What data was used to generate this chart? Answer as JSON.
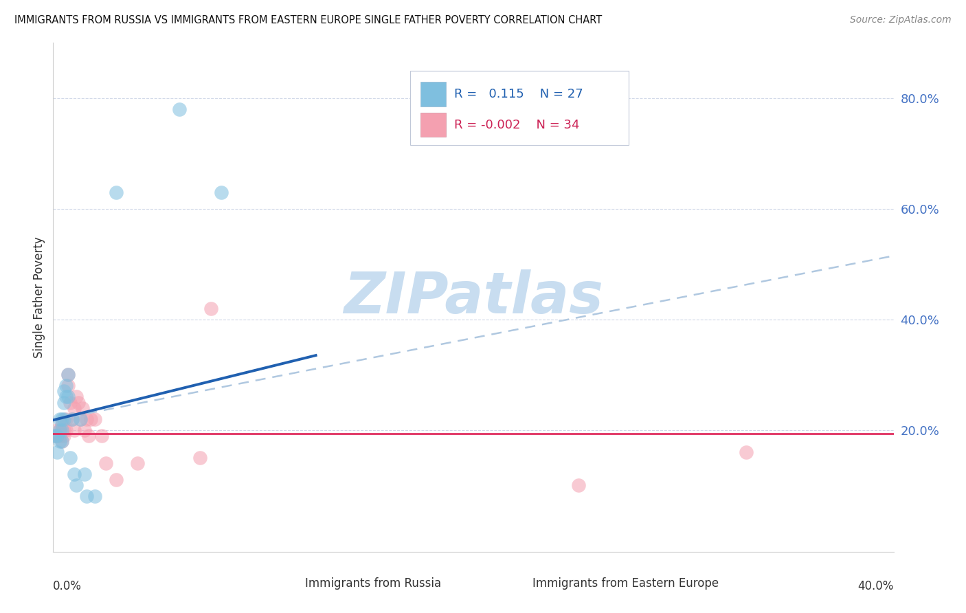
{
  "title": "IMMIGRANTS FROM RUSSIA VS IMMIGRANTS FROM EASTERN EUROPE SINGLE FATHER POVERTY CORRELATION CHART",
  "source": "Source: ZipAtlas.com",
  "ylabel": "Single Father Poverty",
  "right_yticks": [
    "80.0%",
    "60.0%",
    "40.0%",
    "20.0%"
  ],
  "right_ytick_vals": [
    0.8,
    0.6,
    0.4,
    0.2
  ],
  "xlim": [
    0.0,
    0.4
  ],
  "ylim": [
    -0.02,
    0.9
  ],
  "russia_color": "#7fbfdf",
  "eastern_color": "#f4a0b0",
  "russia_line_color": "#2060b0",
  "eastern_line_color": "#e03060",
  "trend_line_dash_color": "#b0c8e0",
  "watermark_color": "#c8ddf0",
  "russia_points_x": [
    0.001,
    0.002,
    0.002,
    0.003,
    0.003,
    0.003,
    0.004,
    0.004,
    0.004,
    0.005,
    0.005,
    0.005,
    0.006,
    0.006,
    0.007,
    0.007,
    0.008,
    0.009,
    0.01,
    0.011,
    0.013,
    0.015,
    0.016,
    0.02,
    0.03,
    0.06,
    0.08
  ],
  "russia_points_y": [
    0.19,
    0.16,
    0.19,
    0.18,
    0.2,
    0.22,
    0.18,
    0.2,
    0.22,
    0.22,
    0.25,
    0.27,
    0.26,
    0.28,
    0.26,
    0.3,
    0.15,
    0.22,
    0.12,
    0.1,
    0.22,
    0.12,
    0.08,
    0.08,
    0.63,
    0.78,
    0.63
  ],
  "eastern_points_x": [
    0.001,
    0.002,
    0.002,
    0.003,
    0.003,
    0.004,
    0.004,
    0.005,
    0.005,
    0.006,
    0.006,
    0.007,
    0.007,
    0.008,
    0.009,
    0.01,
    0.01,
    0.011,
    0.012,
    0.013,
    0.014,
    0.015,
    0.016,
    0.017,
    0.018,
    0.02,
    0.023,
    0.025,
    0.03,
    0.04,
    0.07,
    0.075,
    0.25,
    0.33
  ],
  "eastern_points_y": [
    0.19,
    0.2,
    0.19,
    0.2,
    0.19,
    0.21,
    0.18,
    0.2,
    0.19,
    0.22,
    0.2,
    0.28,
    0.3,
    0.25,
    0.22,
    0.24,
    0.2,
    0.26,
    0.25,
    0.22,
    0.24,
    0.2,
    0.22,
    0.19,
    0.22,
    0.22,
    0.19,
    0.14,
    0.11,
    0.14,
    0.15,
    0.42,
    0.1,
    0.16
  ],
  "blue_trend_x0": 0.0,
  "blue_trend_y0": 0.218,
  "blue_trend_x1": 0.125,
  "blue_trend_y1": 0.335,
  "dash_trend_x0": 0.0,
  "dash_trend_y0": 0.218,
  "dash_trend_x1": 0.4,
  "dash_trend_y1": 0.515,
  "pink_trend_x0": 0.0,
  "pink_trend_y0": 0.193,
  "pink_trend_x1": 0.4,
  "pink_trend_y1": 0.193
}
